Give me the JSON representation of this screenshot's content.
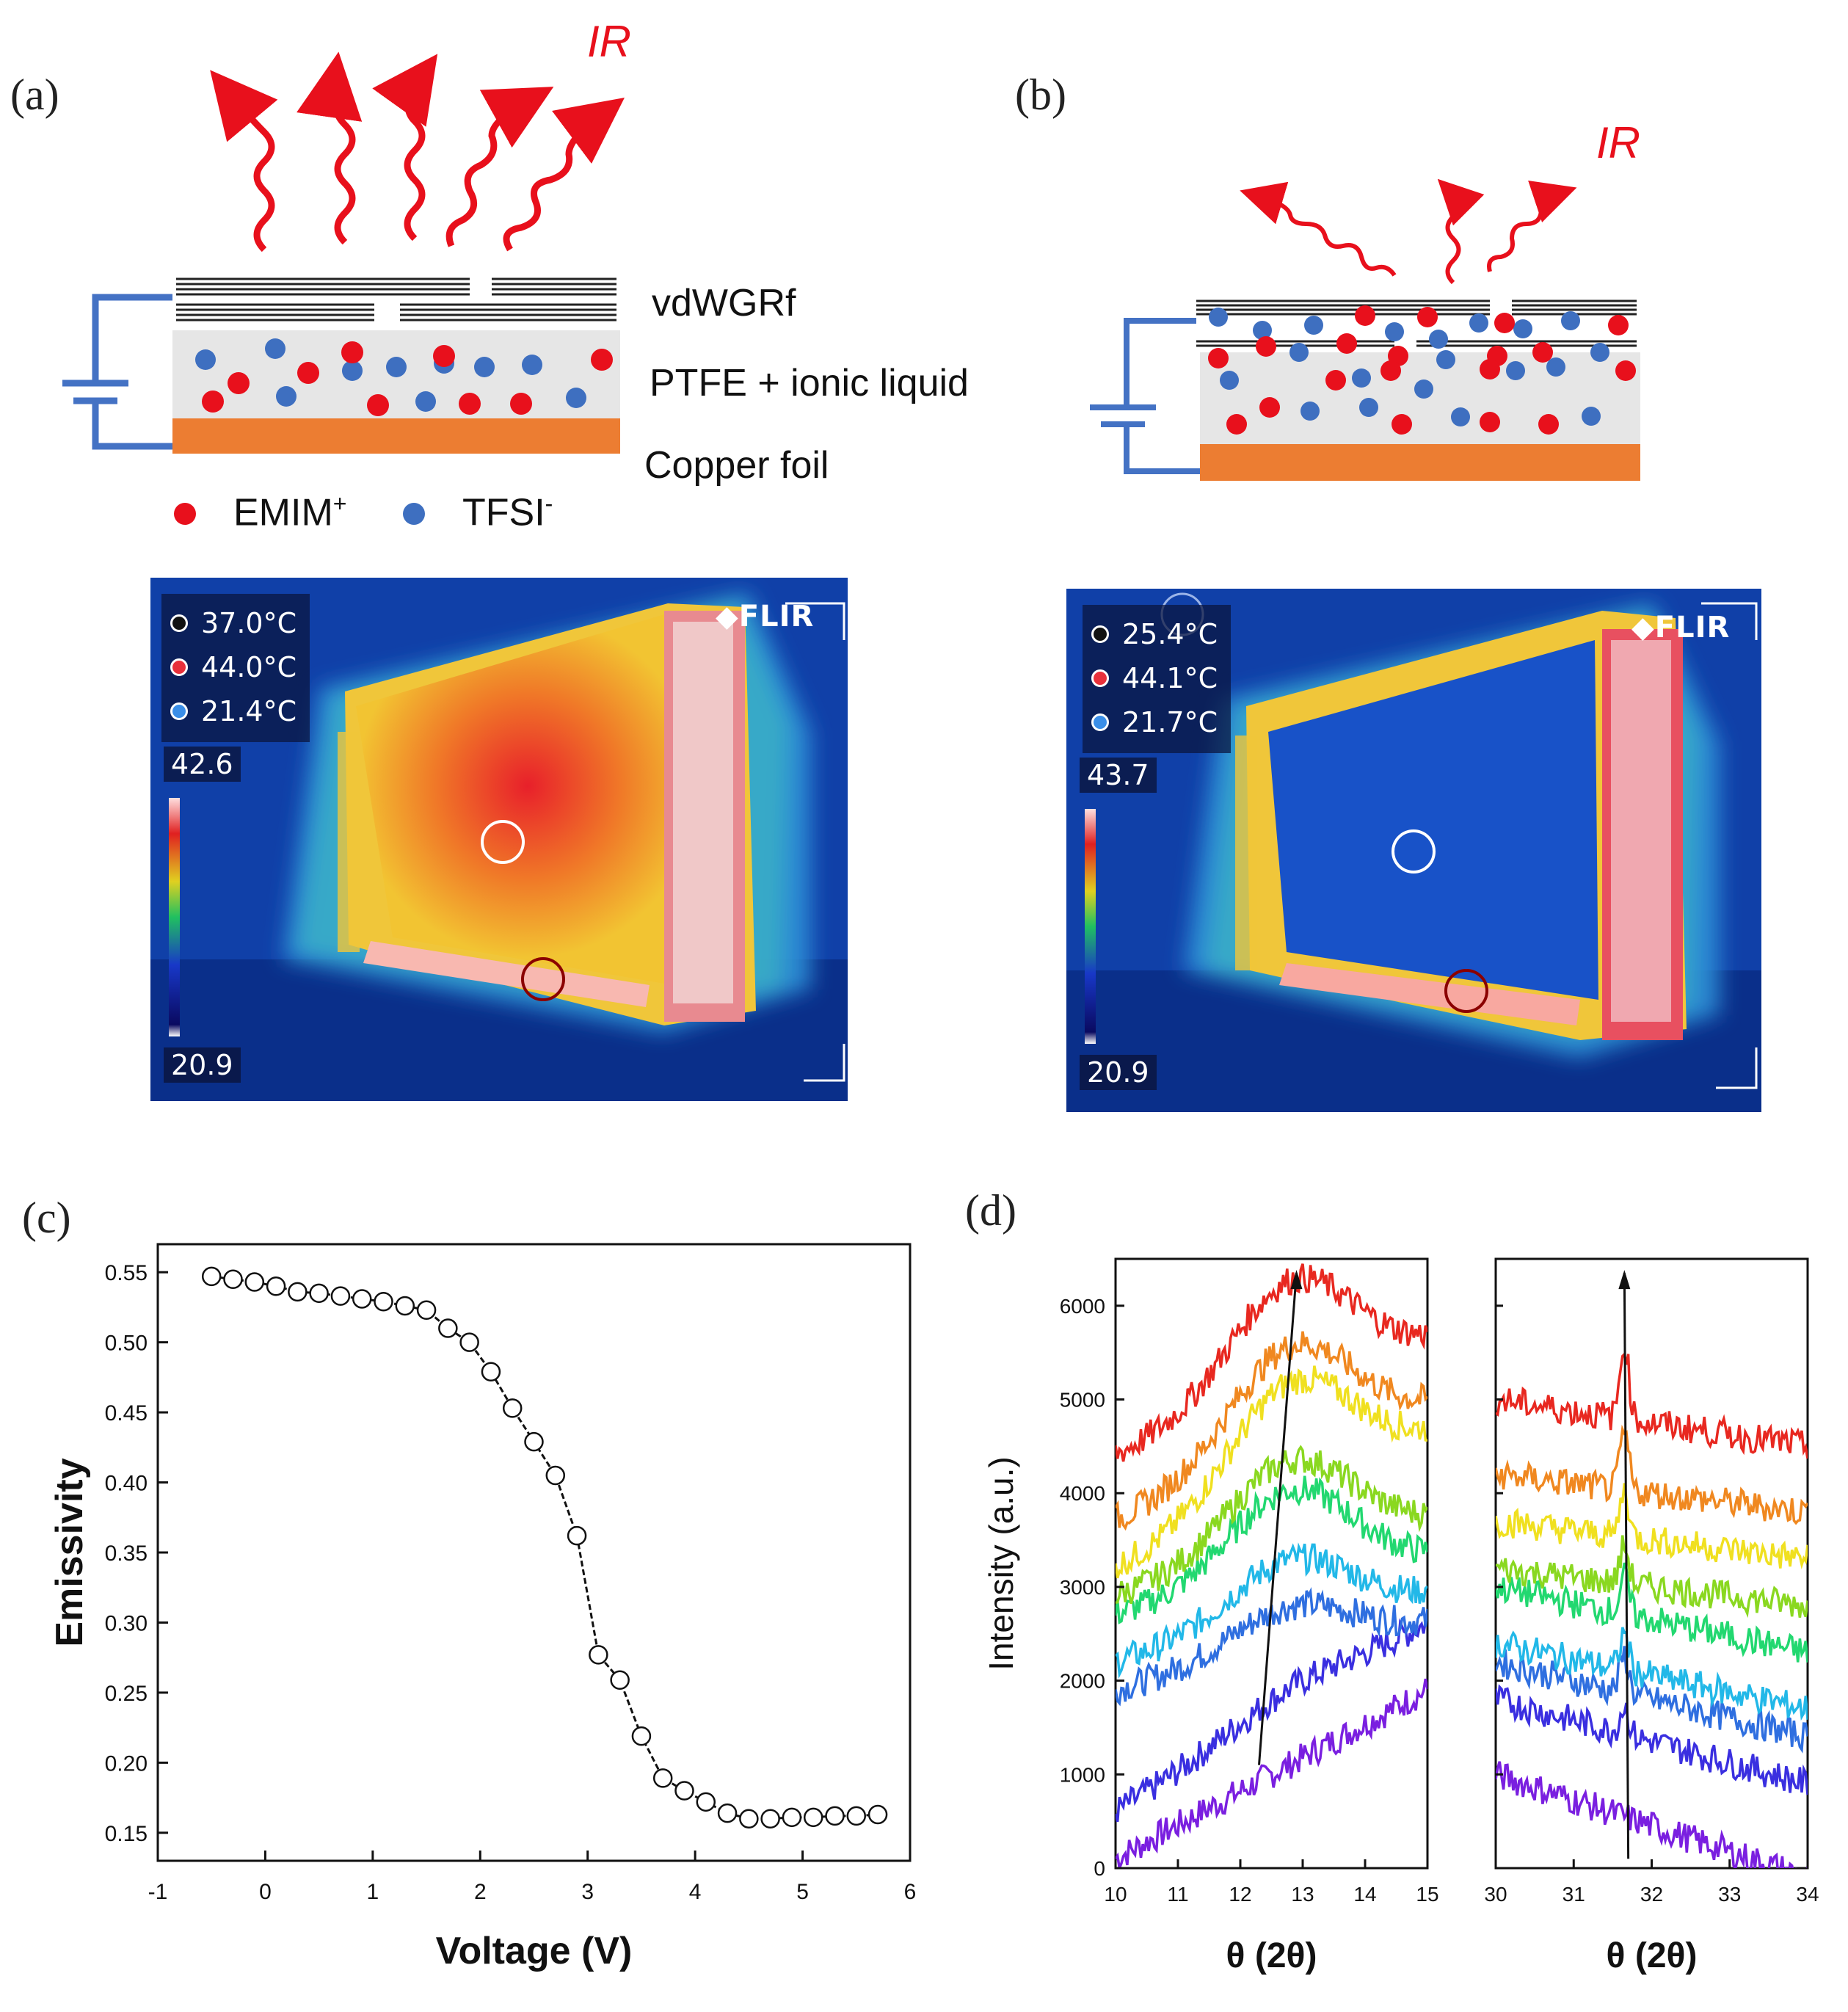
{
  "panels": {
    "a": {
      "label": "(a)",
      "ir_label": "IR",
      "layers": {
        "top": "vdWGRf",
        "middle": "PTFE + ionic liquid",
        "bottom": "Copper foil"
      },
      "legend": {
        "cation": "EMIM",
        "cation_sup": "+",
        "anion": "TFSI",
        "anion_sup": "-"
      },
      "thermal": {
        "brand": "FLIR",
        "readouts": [
          {
            "value": "37.0°C",
            "color": "#ffffff"
          },
          {
            "value": "44.0°C",
            "color": "#e8303a"
          },
          {
            "value": "21.4°C",
            "color": "#3a8ee8"
          }
        ],
        "scale_max": "42.6",
        "scale_min": "20.9"
      }
    },
    "b": {
      "label": "(b)",
      "ir_label": "IR",
      "thermal": {
        "brand": "FLIR",
        "readouts": [
          {
            "value": "25.4°C",
            "color": "#ffffff"
          },
          {
            "value": "44.1°C",
            "color": "#e8303a"
          },
          {
            "value": "21.7°C",
            "color": "#3a8ee8"
          }
        ],
        "scale_max": "43.7",
        "scale_min": "20.9"
      }
    },
    "c": {
      "label": "(c)"
    },
    "d": {
      "label": "(d)"
    }
  },
  "colors": {
    "ir": "#e8101c",
    "cation": "#e8101c",
    "anion": "#3e6fc0",
    "copper": "#ec7d32",
    "ptfe": "#e6e6e6",
    "circuit": "#4472c4"
  },
  "chart_data": [
    {
      "type": "scatter",
      "panel": "c",
      "xlabel": "Voltage (V)",
      "ylabel": "Emissivity",
      "xlim": [
        -1,
        6
      ],
      "ylim": [
        0.13,
        0.57
      ],
      "xticks": [
        "-1",
        "0",
        "1",
        "2",
        "3",
        "4",
        "5",
        "6"
      ],
      "yticks": [
        "0.15",
        "0.20",
        "0.25",
        "0.30",
        "0.35",
        "0.40",
        "0.45",
        "0.50",
        "0.55"
      ],
      "x": [
        -0.5,
        -0.3,
        -0.1,
        0.1,
        0.3,
        0.5,
        0.7,
        0.9,
        1.1,
        1.3,
        1.5,
        1.7,
        1.9,
        2.1,
        2.3,
        2.5,
        2.7,
        2.9,
        3.1,
        3.3,
        3.5,
        3.7,
        3.9,
        4.1,
        4.3,
        4.5,
        4.7,
        4.9,
        5.1,
        5.3,
        5.5,
        5.7
      ],
      "y": [
        0.547,
        0.545,
        0.543,
        0.54,
        0.536,
        0.535,
        0.533,
        0.531,
        0.529,
        0.526,
        0.523,
        0.51,
        0.5,
        0.479,
        0.453,
        0.429,
        0.405,
        0.362,
        0.277,
        0.259,
        0.219,
        0.189,
        0.18,
        0.172,
        0.164,
        0.16,
        0.16,
        0.161,
        0.161,
        0.162,
        0.162,
        0.163
      ]
    },
    {
      "type": "line",
      "panel": "d-left",
      "xlabel": "θ (2θ)",
      "ylabel": "Intensity (a.u.)",
      "xlim": [
        10,
        15
      ],
      "ylim": [
        0,
        6500
      ],
      "xticks": [
        "10",
        "11",
        "12",
        "13",
        "14",
        "15"
      ],
      "yticks": [
        "0",
        "1000",
        "2000",
        "3000",
        "4000",
        "5000",
        "6000"
      ],
      "series": [
        {
          "name": "s1",
          "color": "#7a1fe0",
          "start": 100,
          "end": 1900,
          "peak": 0
        },
        {
          "name": "s2",
          "color": "#3a2fe0",
          "start": 600,
          "end": 2600,
          "peak": 200
        },
        {
          "name": "s3",
          "color": "#2f6fe0",
          "start": 1900,
          "end": 2600,
          "peak": 500
        },
        {
          "name": "s4",
          "color": "#22b8e8",
          "start": 2200,
          "end": 2900,
          "peak": 700
        },
        {
          "name": "s5",
          "color": "#22d870",
          "start": 2700,
          "end": 3300,
          "peak": 1000
        },
        {
          "name": "s6",
          "color": "#8ad820",
          "start": 2900,
          "end": 3700,
          "peak": 1000
        },
        {
          "name": "s7",
          "color": "#f0e020",
          "start": 3200,
          "end": 4600,
          "peak": 1200
        },
        {
          "name": "s8",
          "color": "#f08820",
          "start": 3700,
          "end": 4900,
          "peak": 1200
        },
        {
          "name": "s9",
          "color": "#e82820",
          "start": 4400,
          "end": 5600,
          "peak": 1200
        }
      ],
      "arrow_x": [
        12.3,
        12.9
      ]
    },
    {
      "type": "line",
      "panel": "d-right",
      "xlabel": "θ (2θ)",
      "xlim": [
        30,
        34
      ],
      "ylim": [
        0,
        6500
      ],
      "xticks": [
        "30",
        "31",
        "32",
        "33",
        "34"
      ],
      "series": [
        {
          "name": "s1",
          "color": "#7a1fe0",
          "start": 1000,
          "end": -100,
          "peak": 0
        },
        {
          "name": "s2",
          "color": "#3a2fe0",
          "start": 1800,
          "end": 900,
          "peak": 300
        },
        {
          "name": "s3",
          "color": "#2f6fe0",
          "start": 2200,
          "end": 1400,
          "peak": 400
        },
        {
          "name": "s4",
          "color": "#22b8e8",
          "start": 2400,
          "end": 1700,
          "peak": 400
        },
        {
          "name": "s5",
          "color": "#22d870",
          "start": 3000,
          "end": 2300,
          "peak": 400
        },
        {
          "name": "s6",
          "color": "#8ad820",
          "start": 3200,
          "end": 2800,
          "peak": 400
        },
        {
          "name": "s7",
          "color": "#f0e020",
          "start": 3700,
          "end": 3300,
          "peak": 500
        },
        {
          "name": "s8",
          "color": "#f08820",
          "start": 4200,
          "end": 3800,
          "peak": 600
        },
        {
          "name": "s9",
          "color": "#e82820",
          "start": 5000,
          "end": 4500,
          "peak": 800
        }
      ],
      "arrow_x": [
        31.7,
        31.65
      ]
    }
  ]
}
